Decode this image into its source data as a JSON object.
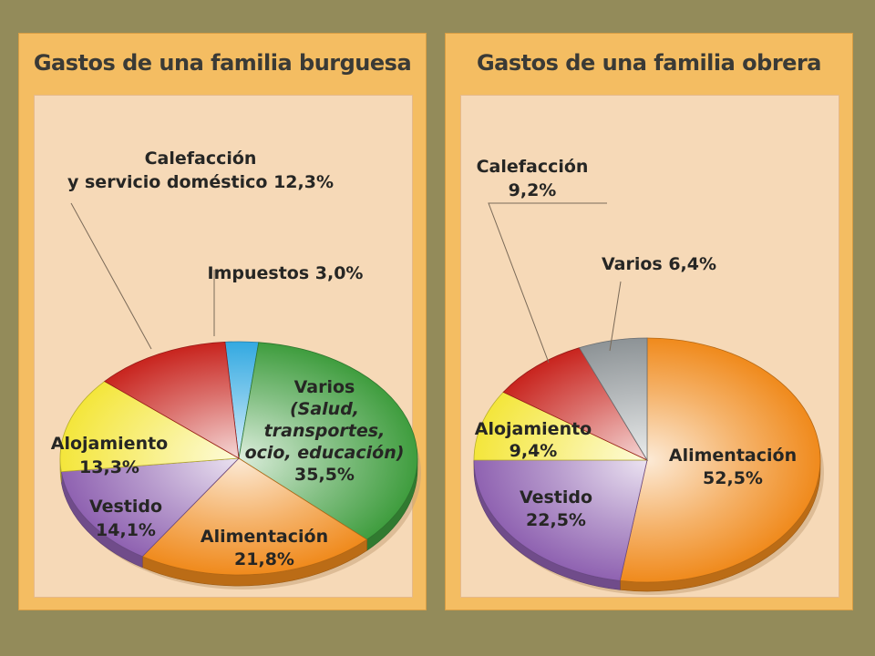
{
  "chart_data": [
    {
      "type": "pie",
      "title": "Gastos de una familia burguesa",
      "slices": [
        {
          "key": "impuestos",
          "label": "Impuestos",
          "value": 3.0,
          "value_text": "3,0%",
          "color": "#33a9e1"
        },
        {
          "key": "varios",
          "label": "Varios",
          "detail": [
            "(Salud,",
            "transportes,",
            "ocio, educación)"
          ],
          "value": 35.5,
          "value_text": "35,5%",
          "color": "#3f9d3e"
        },
        {
          "key": "alimentacion",
          "label": "Alimentación",
          "value": 21.8,
          "value_text": "21,8%",
          "color": "#f08a1c"
        },
        {
          "key": "vestido",
          "label": "Vestido",
          "value": 14.1,
          "value_text": "14,1%",
          "color": "#8f62b1"
        },
        {
          "key": "alojamiento",
          "label": "Alojamiento",
          "value": 13.3,
          "value_text": "13,3%",
          "color": "#f4e63b"
        },
        {
          "key": "calefaccion",
          "label": "Calefacción",
          "label_line2": "y servicio doméstico",
          "value": 12.3,
          "value_text": "12,3%",
          "color": "#c8241e"
        }
      ]
    },
    {
      "type": "pie",
      "title": "Gastos de una familia obrera",
      "slices": [
        {
          "key": "alimentacion",
          "label": "Alimentación",
          "value": 52.5,
          "value_text": "52,5%",
          "color": "#f08a1c"
        },
        {
          "key": "vestido",
          "label": "Vestido",
          "value": 22.5,
          "value_text": "22,5%",
          "color": "#8f62b1"
        },
        {
          "key": "alojamiento",
          "label": "Alojamiento",
          "value": 9.4,
          "value_text": "9,4%",
          "color": "#f4e63b"
        },
        {
          "key": "calefaccion",
          "label": "Calefacción",
          "value": 9.2,
          "value_text": "9,2%",
          "color": "#c8241e"
        },
        {
          "key": "varios",
          "label": "Varios",
          "value": 6.4,
          "value_text": "6,4%",
          "color": "#8d9396"
        }
      ]
    }
  ]
}
